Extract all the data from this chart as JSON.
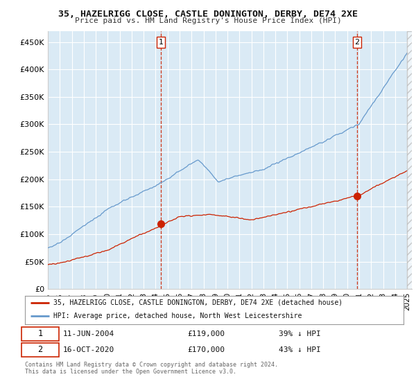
{
  "title1": "35, HAZELRIGG CLOSE, CASTLE DONINGTON, DERBY, DE74 2XE",
  "title2": "Price paid vs. HM Land Registry's House Price Index (HPI)",
  "background_color": "#ffffff",
  "plot_bg_color": "#daeaf5",
  "grid_color": "#ffffff",
  "red_color": "#cc2200",
  "blue_color": "#6699cc",
  "ylim": [
    0,
    470000
  ],
  "yticks": [
    0,
    50000,
    100000,
    150000,
    200000,
    250000,
    300000,
    350000,
    400000,
    450000
  ],
  "ytick_labels": [
    "£0",
    "£50K",
    "£100K",
    "£150K",
    "£200K",
    "£250K",
    "£300K",
    "£350K",
    "£400K",
    "£450K"
  ],
  "transaction1": {
    "year": 2004.45,
    "price": 119000,
    "label": "1",
    "date_str": "11-JUN-2004",
    "pct": "39% ↓ HPI"
  },
  "transaction2": {
    "year": 2020.83,
    "price": 170000,
    "label": "2",
    "date_str": "16-OCT-2020",
    "pct": "43% ↓ HPI"
  },
  "legend_line1": "35, HAZELRIGG CLOSE, CASTLE DONINGTON, DERBY, DE74 2XE (detached house)",
  "legend_line2": "HPI: Average price, detached house, North West Leicestershire",
  "footnote": "Contains HM Land Registry data © Crown copyright and database right 2024.\nThis data is licensed under the Open Government Licence v3.0.",
  "xstart_year": 1995,
  "xend_year": 2025
}
